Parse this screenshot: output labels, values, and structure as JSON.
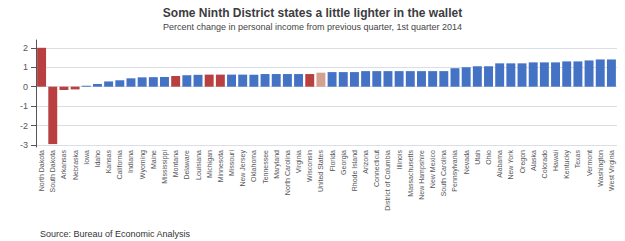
{
  "chart_data": {
    "type": "bar",
    "title": "Some Ninth District states a little lighter in the wallet",
    "subtitle": "Percent change in personal income from previous quarter, 1st quarter 2014",
    "annotations": [
      "Source: Bureau of Economic Analysis"
    ],
    "categories": [
      "North Dakota",
      "South Dakota",
      "Arkansas",
      "Nebraska",
      "Iowa",
      "Idaho",
      "Kansas",
      "California",
      "Indiana",
      "Wyoming",
      "Maine",
      "Mississippi",
      "Montana",
      "Delaware",
      "Louisiana",
      "Michigan",
      "Minnesota",
      "Missouri",
      "New Jersey",
      "Oklahoma",
      "Tennessee",
      "Maryland",
      "North Carolina",
      "Virginia",
      "Wisconsin",
      "United States",
      "Florida",
      "Georgia",
      "Rhode Island",
      "Arizona",
      "Connecticut",
      "District of Columbia",
      "Illinois",
      "Massachusetts",
      "New Hampshire",
      "New Mexico",
      "South Carolina",
      "Pennsylvania",
      "Nevada",
      "Utah",
      "Ohio",
      "Alabama",
      "New York",
      "Oregon",
      "Alaska",
      "Colorado",
      "Hawaii",
      "Kentucky",
      "Texas",
      "Vermont",
      "Washington",
      "West Virginia"
    ],
    "values": [
      2.0,
      -2.95,
      -0.17,
      -0.14,
      0.05,
      0.14,
      0.27,
      0.33,
      0.43,
      0.48,
      0.49,
      0.5,
      0.55,
      0.59,
      0.61,
      0.62,
      0.62,
      0.62,
      0.62,
      0.62,
      0.65,
      0.65,
      0.65,
      0.65,
      0.65,
      0.72,
      0.75,
      0.75,
      0.75,
      0.8,
      0.8,
      0.8,
      0.8,
      0.8,
      0.8,
      0.8,
      0.8,
      0.95,
      1.0,
      1.05,
      1.05,
      1.2,
      1.2,
      1.2,
      1.25,
      1.25,
      1.25,
      1.3,
      1.3,
      1.35,
      1.4,
      1.4
    ],
    "colors": [
      "#b94040",
      "#b94040",
      "#b94040",
      "#b94040",
      "#4472c4",
      "#4472c4",
      "#4472c4",
      "#4472c4",
      "#4472c4",
      "#4472c4",
      "#4472c4",
      "#4472c4",
      "#b94040",
      "#4472c4",
      "#4472c4",
      "#b94040",
      "#b94040",
      "#4472c4",
      "#4472c4",
      "#4472c4",
      "#4472c4",
      "#4472c4",
      "#4472c4",
      "#4472c4",
      "#b94040",
      "#d4a090",
      "#4472c4",
      "#4472c4",
      "#4472c4",
      "#4472c4",
      "#4472c4",
      "#4472c4",
      "#4472c4",
      "#4472c4",
      "#4472c4",
      "#4472c4",
      "#4472c4",
      "#4472c4",
      "#4472c4",
      "#4472c4",
      "#4472c4",
      "#4472c4",
      "#4472c4",
      "#4472c4",
      "#4472c4",
      "#4472c4",
      "#4472c4",
      "#4472c4",
      "#4472c4",
      "#4472c4",
      "#4472c4",
      "#4472c4"
    ],
    "ylim": [
      -3.1,
      2.4
    ],
    "yticks": [
      -3,
      -2,
      -1,
      0,
      1,
      2
    ],
    "grid": true
  }
}
